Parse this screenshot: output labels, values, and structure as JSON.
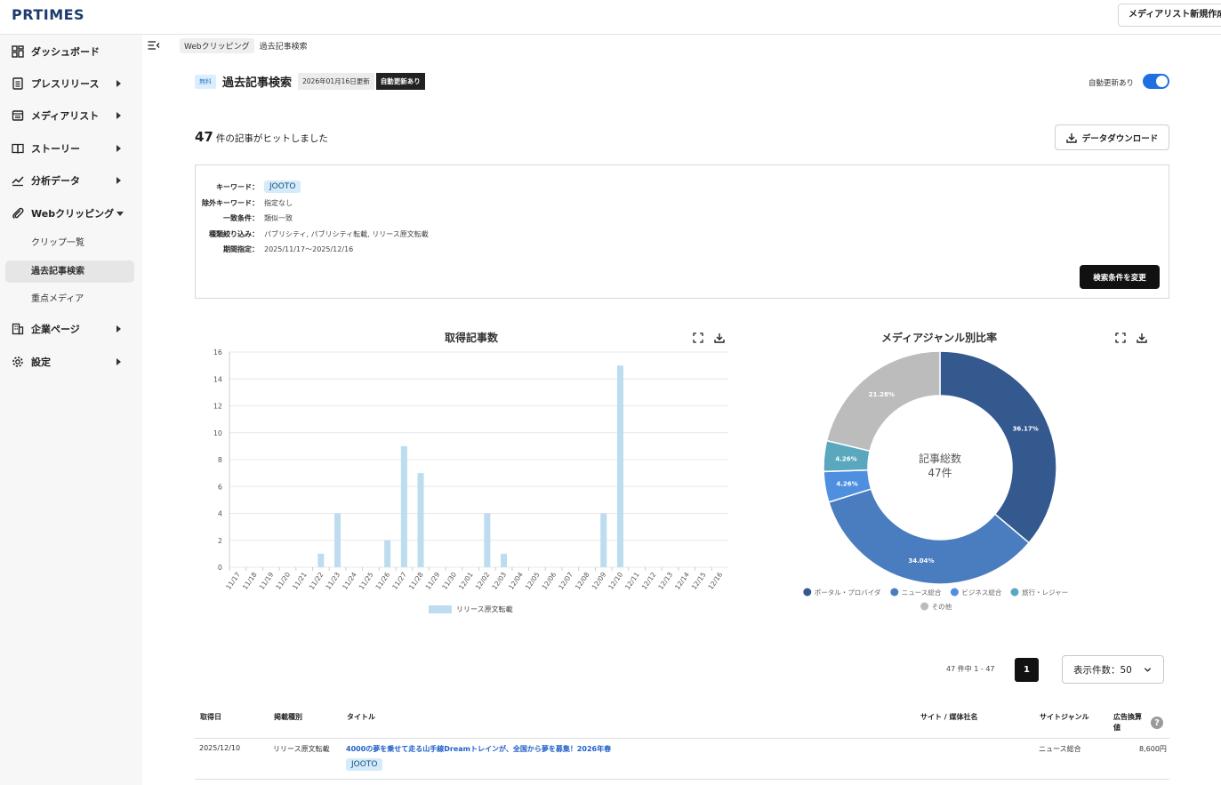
{
  "header": {
    "logo": "PRTIMES",
    "new_list_button": "メディアリスト新規作成"
  },
  "sidebar": {
    "items": [
      {
        "label": "ダッシュボード",
        "icon": "dashboard-icon",
        "caret": false
      },
      {
        "label": "プレスリリース",
        "icon": "document-icon",
        "caret": true
      },
      {
        "label": "メディアリスト",
        "icon": "list-icon",
        "caret": true
      },
      {
        "label": "ストーリー",
        "icon": "book-icon",
        "caret": true
      },
      {
        "label": "分析データ",
        "icon": "chart-line-icon",
        "caret": true
      },
      {
        "label": "Webクリッピング",
        "icon": "paperclip-icon",
        "caret": true,
        "expanded": true
      },
      {
        "label": "企業ページ",
        "icon": "building-icon",
        "caret": true
      },
      {
        "label": "設定",
        "icon": "gear-icon",
        "caret": true
      }
    ],
    "subitems": [
      {
        "label": "クリップ一覧",
        "active": false
      },
      {
        "label": "過去記事検索",
        "active": true
      },
      {
        "label": "重点メディア",
        "active": false
      }
    ]
  },
  "breadcrumb": [
    "Webクリッピング",
    "過去記事検索"
  ],
  "page": {
    "free_badge": "無料",
    "title": "過去記事検索",
    "updated": "2026年01月16日更新",
    "auto_badge": "自動更新あり",
    "toggle_label": "自動更新あり",
    "toggle_on": true,
    "hit_count": "47",
    "hit_text": "件の記事がヒットしました",
    "download_button": "データダウンロード"
  },
  "conditions": {
    "rows": [
      {
        "key": "キーワード：",
        "value": "JOOTO",
        "tag": true
      },
      {
        "key": "除外キーワード：",
        "value": "指定なし"
      },
      {
        "key": "一致条件：",
        "value": "類似一致"
      },
      {
        "key": "種類絞り込み：",
        "value": "パブリシティ, パブリシティ転載, リリース原文転載"
      },
      {
        "key": "期間指定：",
        "value": "2025/11/17〜2025/12/16"
      }
    ],
    "change_button": "検索条件を変更"
  },
  "chart_data": [
    {
      "type": "bar",
      "title": "取得記事数",
      "categories": [
        "11/17",
        "11/18",
        "11/19",
        "11/20",
        "11/21",
        "11/22",
        "11/23",
        "11/24",
        "11/25",
        "11/26",
        "11/27",
        "11/28",
        "11/29",
        "11/30",
        "12/01",
        "12/02",
        "12/03",
        "12/04",
        "12/05",
        "12/06",
        "12/07",
        "12/08",
        "12/09",
        "12/10",
        "12/11",
        "12/12",
        "12/13",
        "12/14",
        "12/15",
        "12/16"
      ],
      "series": [
        {
          "name": "リリース原文転載",
          "values": [
            0,
            0,
            0,
            0,
            0,
            1,
            4,
            0,
            0,
            2,
            9,
            7,
            0,
            0,
            0,
            4,
            1,
            0,
            0,
            0,
            0,
            0,
            4,
            15,
            0,
            0,
            0,
            0,
            0,
            0
          ],
          "color": "#bddcf0"
        }
      ],
      "yticks": [
        0,
        2,
        4,
        6,
        8,
        10,
        12,
        14,
        16
      ],
      "ylim": [
        0,
        16
      ],
      "legend": "bottom",
      "grid": true
    },
    {
      "type": "pie",
      "title": "メディアジャンル別比率",
      "center_label": "記事総数",
      "center_value": "47件",
      "slices": [
        {
          "name": "ポータル・プロバイダ",
          "value": 36.17,
          "label": "36.17%",
          "color": "#34598f"
        },
        {
          "name": "ニュース総合",
          "value": 34.04,
          "label": "34.04%",
          "color": "#4a7cc0"
        },
        {
          "name": "ビジネス総合",
          "value": 4.26,
          "label": "4.26%",
          "color": "#4f8fe0"
        },
        {
          "name": "旅行・レジャー",
          "value": 4.26,
          "label": "4.26%",
          "color": "#5aa8be"
        },
        {
          "name": "その他",
          "value": 21.28,
          "label": "21.28%",
          "color": "#bcbcbc"
        }
      ],
      "legend": "bottom"
    }
  ],
  "pagination": {
    "info": "47 件中 1 - 47",
    "current_page": "1",
    "per_page": "表示件数：50"
  },
  "table": {
    "headers": [
      "取得日",
      "掲載種別",
      "タイトル",
      "サイト / 媒体社名",
      "サイトジャンル",
      "広告換算値"
    ],
    "rows": [
      {
        "date": "2025/12/10",
        "kind": "リリース原文転載",
        "title": "4000の夢を乗せて走る山手線Dreamトレインが、全国から夢を募集！2026年春",
        "tag": "JOOTO",
        "site": "",
        "genre": "ニュース総合",
        "ad_value": "8,600円"
      }
    ]
  }
}
